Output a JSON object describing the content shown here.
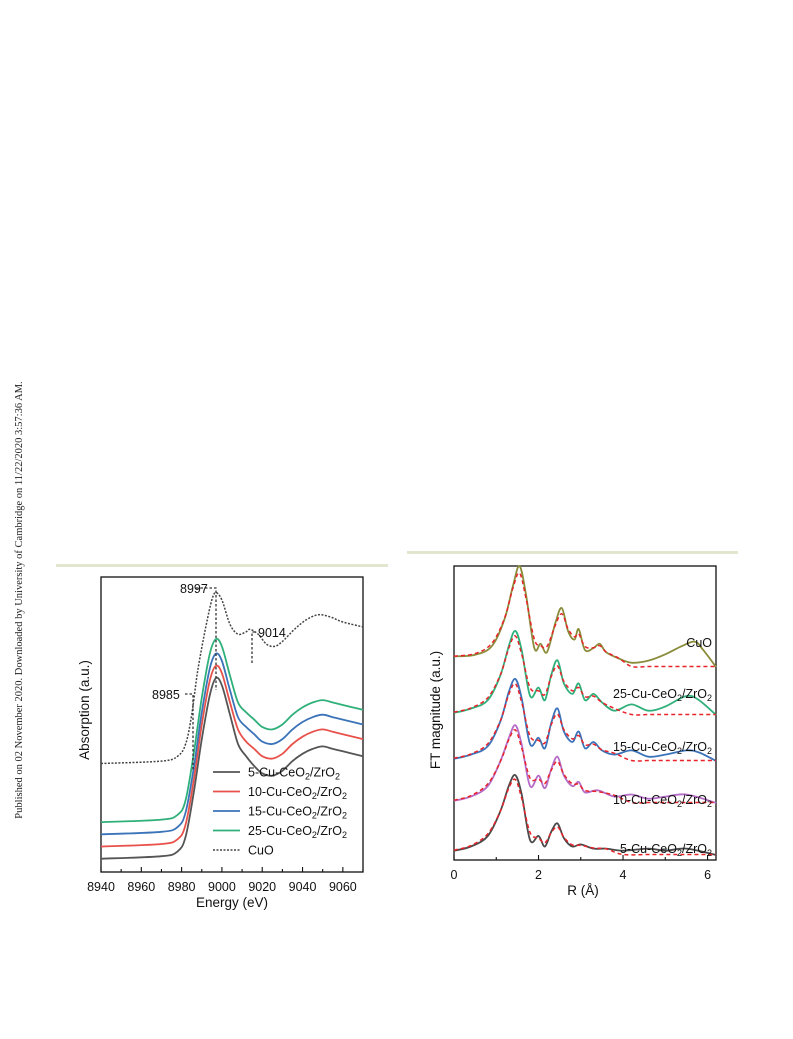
{
  "watermark": "Published on 02 November 2020. Downloaded by University of Cambridge on 11/22/2020 3:57:36 AM.",
  "chart_data": [
    {
      "type": "line",
      "xlabel": "Energy (eV)",
      "ylabel": "Absorption (a.u.)",
      "xlim": [
        8940,
        9070
      ],
      "xticks": [
        8940,
        8960,
        8980,
        9000,
        9020,
        9040,
        9060
      ],
      "legend_position": "bottom-right",
      "annotations": [
        "8997",
        "9014",
        "8985"
      ],
      "series": [
        {
          "name": "5-Cu-CeO2/ZrO2",
          "color": "#555555",
          "points": [
            [
              8940,
              0.03
            ],
            [
              8970,
              0.04
            ],
            [
              8978,
              0.06
            ],
            [
              8982,
              0.12
            ],
            [
              8986,
              0.3
            ],
            [
              8990,
              0.52
            ],
            [
              8994,
              0.7
            ],
            [
              8997,
              0.77
            ],
            [
              9000,
              0.74
            ],
            [
              9004,
              0.62
            ],
            [
              9008,
              0.5
            ],
            [
              9012,
              0.45
            ],
            [
              9016,
              0.41
            ],
            [
              9020,
              0.38
            ],
            [
              9025,
              0.37
            ],
            [
              9030,
              0.39
            ],
            [
              9035,
              0.43
            ],
            [
              9040,
              0.46
            ],
            [
              9045,
              0.48
            ],
            [
              9050,
              0.49
            ],
            [
              9055,
              0.48
            ],
            [
              9060,
              0.47
            ],
            [
              9070,
              0.45
            ]
          ]
        },
        {
          "name": "10-Cu-CeO2/ZrO2",
          "color": "#e8514a",
          "points": [
            [
              8940,
              0.08
            ],
            [
              8970,
              0.09
            ],
            [
              8978,
              0.11
            ],
            [
              8982,
              0.17
            ],
            [
              8986,
              0.35
            ],
            [
              8990,
              0.58
            ],
            [
              8994,
              0.76
            ],
            [
              8997,
              0.82
            ],
            [
              9000,
              0.79
            ],
            [
              9004,
              0.67
            ],
            [
              9008,
              0.56
            ],
            [
              9012,
              0.51
            ],
            [
              9016,
              0.48
            ],
            [
              9020,
              0.45
            ],
            [
              9025,
              0.44
            ],
            [
              9030,
              0.46
            ],
            [
              9035,
              0.5
            ],
            [
              9040,
              0.53
            ],
            [
              9045,
              0.55
            ],
            [
              9050,
              0.56
            ],
            [
              9055,
              0.55
            ],
            [
              9060,
              0.54
            ],
            [
              9070,
              0.52
            ]
          ]
        },
        {
          "name": "15-Cu-CeO2/ZrO2",
          "color": "#3b73b9",
          "points": [
            [
              8940,
              0.13
            ],
            [
              8970,
              0.14
            ],
            [
              8978,
              0.16
            ],
            [
              8982,
              0.22
            ],
            [
              8986,
              0.4
            ],
            [
              8990,
              0.63
            ],
            [
              8994,
              0.81
            ],
            [
              8997,
              0.87
            ],
            [
              9000,
              0.84
            ],
            [
              9004,
              0.72
            ],
            [
              9008,
              0.61
            ],
            [
              9012,
              0.57
            ],
            [
              9016,
              0.54
            ],
            [
              9020,
              0.51
            ],
            [
              9025,
              0.5
            ],
            [
              9030,
              0.52
            ],
            [
              9035,
              0.56
            ],
            [
              9040,
              0.59
            ],
            [
              9045,
              0.61
            ],
            [
              9050,
              0.62
            ],
            [
              9055,
              0.61
            ],
            [
              9060,
              0.6
            ],
            [
              9070,
              0.58
            ]
          ]
        },
        {
          "name": "25-Cu-CeO2/ZrO2",
          "color": "#2fb07a",
          "points": [
            [
              8940,
              0.18
            ],
            [
              8970,
              0.19
            ],
            [
              8978,
              0.21
            ],
            [
              8982,
              0.27
            ],
            [
              8986,
              0.46
            ],
            [
              8990,
              0.69
            ],
            [
              8994,
              0.87
            ],
            [
              8997,
              0.93
            ],
            [
              9000,
              0.9
            ],
            [
              9004,
              0.78
            ],
            [
              9008,
              0.67
            ],
            [
              9012,
              0.63
            ],
            [
              9016,
              0.6
            ],
            [
              9020,
              0.57
            ],
            [
              9025,
              0.56
            ],
            [
              9030,
              0.58
            ],
            [
              9035,
              0.62
            ],
            [
              9040,
              0.65
            ],
            [
              9045,
              0.67
            ],
            [
              9050,
              0.68
            ],
            [
              9055,
              0.67
            ],
            [
              9060,
              0.66
            ],
            [
              9070,
              0.64
            ]
          ]
        },
        {
          "name": "CuO",
          "color": "#444444",
          "dashed": true,
          "points": [
            [
              8940,
              0.42
            ],
            [
              8970,
              0.43
            ],
            [
              8978,
              0.45
            ],
            [
              8982,
              0.5
            ],
            [
              8985,
              0.62
            ],
            [
              8988,
              0.8
            ],
            [
              8992,
              0.98
            ],
            [
              8995,
              1.09
            ],
            [
              8997,
              1.12
            ],
            [
              9000,
              1.09
            ],
            [
              9004,
              0.99
            ],
            [
              9008,
              0.95
            ],
            [
              9012,
              0.96
            ],
            [
              9014,
              0.97
            ],
            [
              9018,
              0.95
            ],
            [
              9022,
              0.91
            ],
            [
              9026,
              0.9
            ],
            [
              9030,
              0.92
            ],
            [
              9036,
              0.97
            ],
            [
              9042,
              1.01
            ],
            [
              9048,
              1.03
            ],
            [
              9054,
              1.02
            ],
            [
              9060,
              1.0
            ],
            [
              9070,
              0.98
            ]
          ]
        }
      ]
    },
    {
      "type": "line",
      "xlabel": "R (Å)",
      "ylabel": "FT magnitude (a.u.)",
      "xlim": [
        0,
        6.2
      ],
      "xticks": [
        0,
        2,
        4,
        6
      ],
      "series": [
        {
          "name": "CuO",
          "color": "#8a8c3a",
          "offset": 4,
          "points": [
            [
              0,
              0.3
            ],
            [
              0.5,
              0.34
            ],
            [
              0.9,
              0.55
            ],
            [
              1.2,
              1.2
            ],
            [
              1.4,
              2.0
            ],
            [
              1.55,
              2.45
            ],
            [
              1.7,
              1.8
            ],
            [
              1.9,
              0.5
            ],
            [
              2.05,
              0.6
            ],
            [
              2.2,
              0.4
            ],
            [
              2.4,
              1.1
            ],
            [
              2.55,
              1.45
            ],
            [
              2.7,
              0.9
            ],
            [
              2.85,
              0.7
            ],
            [
              2.95,
              0.95
            ],
            [
              3.1,
              0.45
            ],
            [
              3.3,
              0.5
            ],
            [
              3.45,
              0.6
            ],
            [
              3.6,
              0.4
            ],
            [
              3.9,
              0.25
            ],
            [
              4.2,
              0.15
            ],
            [
              4.6,
              0.2
            ],
            [
              5.0,
              0.35
            ],
            [
              5.4,
              0.55
            ],
            [
              5.7,
              0.65
            ],
            [
              5.9,
              0.45
            ],
            [
              6.2,
              0.05
            ]
          ]
        },
        {
          "name": "25-Cu-CeO2/ZrO2",
          "color": "#2fb07a",
          "offset": 3,
          "points": [
            [
              0,
              0.1
            ],
            [
              0.4,
              0.2
            ],
            [
              0.8,
              0.4
            ],
            [
              1.1,
              1.0
            ],
            [
              1.3,
              1.7
            ],
            [
              1.45,
              2.05
            ],
            [
              1.6,
              1.6
            ],
            [
              1.8,
              0.5
            ],
            [
              2.0,
              0.7
            ],
            [
              2.15,
              0.4
            ],
            [
              2.3,
              1.0
            ],
            [
              2.45,
              1.35
            ],
            [
              2.6,
              0.8
            ],
            [
              2.8,
              0.55
            ],
            [
              2.95,
              0.8
            ],
            [
              3.1,
              0.4
            ],
            [
              3.3,
              0.55
            ],
            [
              3.5,
              0.35
            ],
            [
              3.8,
              0.15
            ],
            [
              4.2,
              0.3
            ],
            [
              4.6,
              0.15
            ],
            [
              5.0,
              0.25
            ],
            [
              5.5,
              0.5
            ],
            [
              5.8,
              0.4
            ],
            [
              6.2,
              0.05
            ]
          ]
        },
        {
          "name": "15-Cu-CeO2/ZrO2",
          "color": "#3b73b9",
          "offset": 2,
          "points": [
            [
              0,
              0.1
            ],
            [
              0.4,
              0.2
            ],
            [
              0.8,
              0.4
            ],
            [
              1.1,
              1.0
            ],
            [
              1.3,
              1.7
            ],
            [
              1.45,
              2.0
            ],
            [
              1.6,
              1.55
            ],
            [
              1.8,
              0.45
            ],
            [
              2.0,
              0.6
            ],
            [
              2.15,
              0.35
            ],
            [
              2.3,
              0.95
            ],
            [
              2.45,
              1.3
            ],
            [
              2.6,
              0.75
            ],
            [
              2.8,
              0.5
            ],
            [
              2.95,
              0.75
            ],
            [
              3.1,
              0.35
            ],
            [
              3.3,
              0.5
            ],
            [
              3.5,
              0.3
            ],
            [
              3.8,
              0.2
            ],
            [
              4.2,
              0.3
            ],
            [
              4.6,
              0.15
            ],
            [
              5.0,
              0.2
            ],
            [
              5.5,
              0.3
            ],
            [
              5.8,
              0.25
            ],
            [
              6.2,
              0.05
            ]
          ]
        },
        {
          "name": "10-Cu-CeO2/ZrO2",
          "color": "#b56cc8",
          "offset": 1,
          "points": [
            [
              0,
              0.1
            ],
            [
              0.4,
              0.2
            ],
            [
              0.8,
              0.45
            ],
            [
              1.1,
              1.05
            ],
            [
              1.3,
              1.6
            ],
            [
              1.45,
              1.9
            ],
            [
              1.6,
              1.45
            ],
            [
              1.8,
              0.45
            ],
            [
              2.0,
              0.7
            ],
            [
              2.15,
              0.4
            ],
            [
              2.3,
              0.85
            ],
            [
              2.45,
              1.15
            ],
            [
              2.6,
              0.7
            ],
            [
              2.8,
              0.45
            ],
            [
              2.95,
              0.55
            ],
            [
              3.1,
              0.3
            ],
            [
              3.4,
              0.35
            ],
            [
              3.8,
              0.2
            ],
            [
              4.2,
              0.25
            ],
            [
              4.6,
              0.15
            ],
            [
              5.0,
              0.2
            ],
            [
              5.5,
              0.25
            ],
            [
              6.2,
              0.05
            ]
          ]
        },
        {
          "name": "5-Cu-CeO2/ZrO2",
          "color": "#4a4a4a",
          "offset": 0,
          "points": [
            [
              0,
              0.15
            ],
            [
              0.4,
              0.25
            ],
            [
              0.8,
              0.5
            ],
            [
              1.1,
              1.1
            ],
            [
              1.3,
              1.7
            ],
            [
              1.45,
              1.95
            ],
            [
              1.6,
              1.5
            ],
            [
              1.8,
              0.4
            ],
            [
              2.0,
              0.5
            ],
            [
              2.15,
              0.25
            ],
            [
              2.3,
              0.6
            ],
            [
              2.45,
              0.8
            ],
            [
              2.6,
              0.45
            ],
            [
              2.8,
              0.25
            ],
            [
              3.0,
              0.3
            ],
            [
              3.3,
              0.2
            ],
            [
              3.6,
              0.2
            ],
            [
              4.0,
              0.15
            ],
            [
              4.6,
              0.2
            ],
            [
              5.0,
              0.15
            ],
            [
              5.5,
              0.2
            ],
            [
              6.2,
              0.05
            ]
          ]
        }
      ]
    }
  ]
}
